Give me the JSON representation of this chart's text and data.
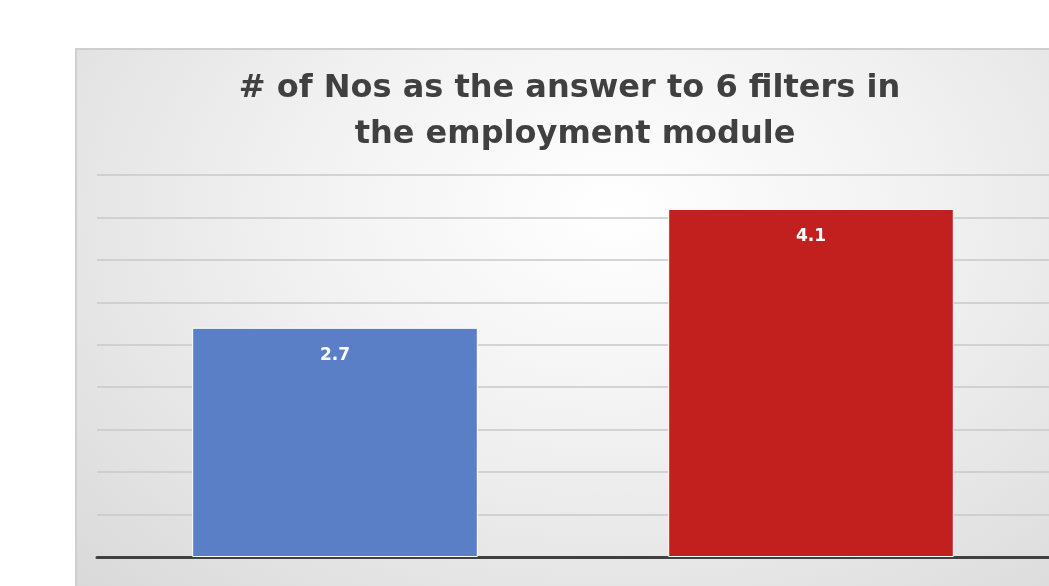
{
  "chart_data": {
    "type": "bar",
    "title": "# of Nos as the answer to 6 filters in the employment module",
    "categories": [
      null,
      null
    ],
    "values": [
      2.7,
      4.1
    ],
    "colors": [
      "#5b7fc7",
      "#c21f1f"
    ],
    "data_labels": true,
    "ylim": [
      0,
      4.5
    ],
    "yticks": [
      {
        "value": 0,
        "label": null
      },
      {
        "value": 0.5,
        "label": null
      },
      {
        "value": 1,
        "label": null
      },
      {
        "value": 1.5,
        "label": null
      },
      {
        "value": 2,
        "label": null
      },
      {
        "value": 2.5,
        "label": null
      },
      {
        "value": 3,
        "label": null
      },
      {
        "value": 3.5,
        "label": null
      },
      {
        "value": 4,
        "label": null
      },
      {
        "value": 4.5,
        "label": null
      }
    ],
    "grid": "y"
  }
}
